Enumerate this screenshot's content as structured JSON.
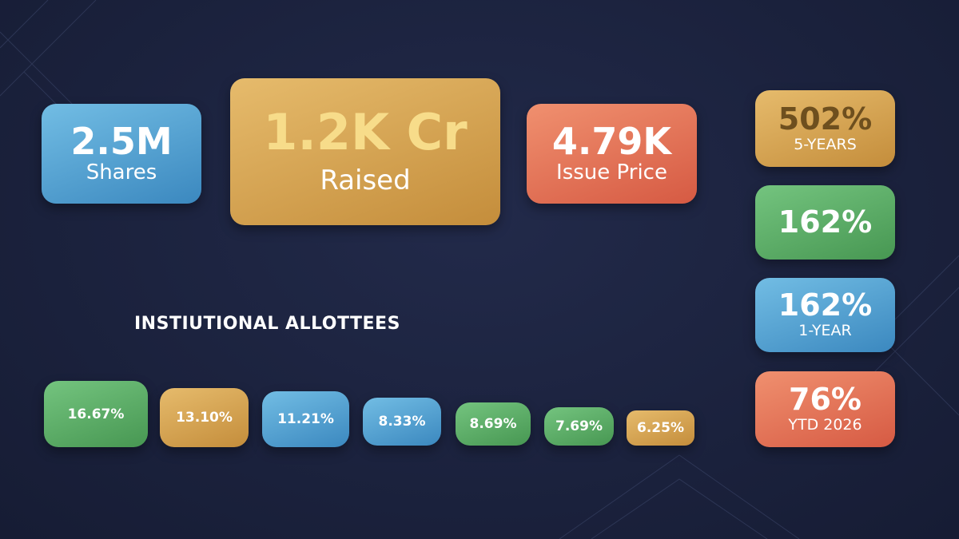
{
  "stats": [
    {
      "value": "2.5M",
      "label": "Shares"
    },
    {
      "value": "1.2K Cr",
      "label": "Raised"
    },
    {
      "value": "4.79K",
      "label": "Issue Price"
    }
  ],
  "returns": [
    {
      "value": "502%",
      "label": "5-YEARS"
    },
    {
      "value": "162%"
    },
    {
      "value": "162%",
      "label": "1-YEAR"
    },
    {
      "value": "76%",
      "label": "YTD 2026"
    }
  ],
  "allottees": {
    "title": "INSTIUTIONAL ALLOTTEES",
    "items": [
      "16.67%",
      "13.10%",
      "11.21%",
      "8.33%",
      "8.69%",
      "7.69%",
      "6.25%"
    ]
  }
}
